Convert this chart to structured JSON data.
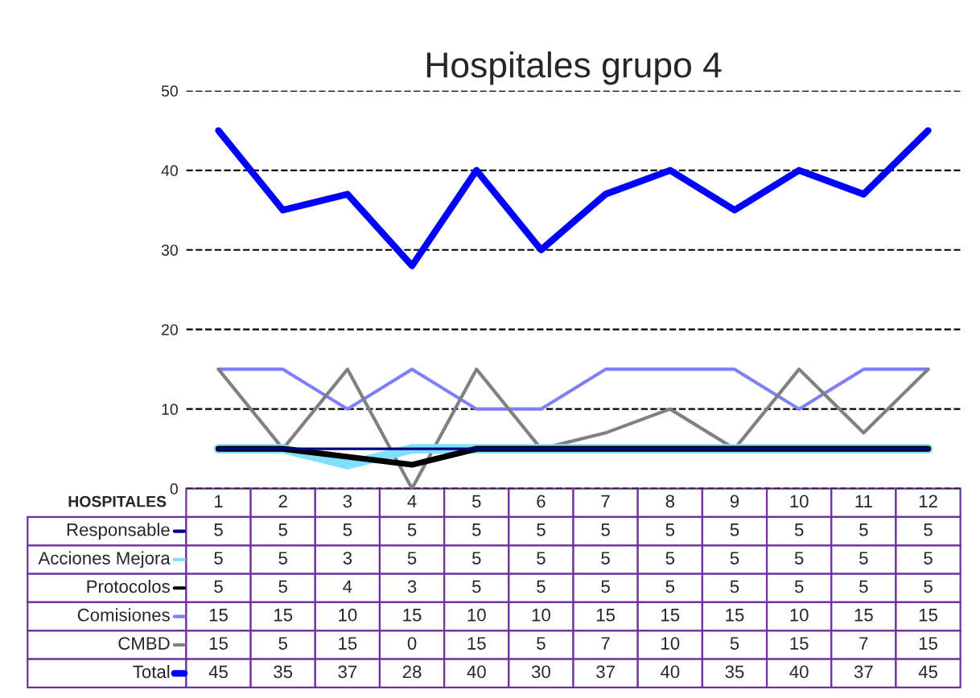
{
  "chart_data": {
    "type": "line",
    "title": "Hospitales grupo 4",
    "xlabel": "HOSPITALES",
    "categories": [
      "1",
      "2",
      "3",
      "4",
      "5",
      "6",
      "7",
      "8",
      "9",
      "10",
      "11",
      "12"
    ],
    "series": [
      {
        "name": "Responsable",
        "color": "#000080",
        "values": [
          5,
          5,
          5,
          5,
          5,
          5,
          5,
          5,
          5,
          5,
          5,
          5
        ]
      },
      {
        "name": "Acciones Mejora",
        "color": "#80e0ff",
        "values": [
          5,
          5,
          3,
          5,
          5,
          5,
          5,
          5,
          5,
          5,
          5,
          5
        ]
      },
      {
        "name": "Protocolos",
        "color": "#000000",
        "values": [
          5,
          5,
          4,
          3,
          5,
          5,
          5,
          5,
          5,
          5,
          5,
          5
        ]
      },
      {
        "name": "Comisiones",
        "color": "#8080ff",
        "values": [
          15,
          15,
          10,
          15,
          10,
          10,
          15,
          15,
          15,
          10,
          15,
          15
        ]
      },
      {
        "name": "CMBD",
        "color": "#808080",
        "values": [
          15,
          5,
          15,
          0,
          15,
          5,
          7,
          10,
          5,
          15,
          7,
          15
        ]
      },
      {
        "name": "Total",
        "color": "#0000ff",
        "values": [
          45,
          35,
          37,
          28,
          40,
          30,
          37,
          40,
          35,
          40,
          37,
          45
        ]
      }
    ],
    "ylim": [
      0,
      50
    ],
    "yticks": [
      0,
      10,
      20,
      30,
      40,
      50
    ],
    "grid": "y",
    "legend": "bottom left",
    "data_labels": true,
    "marker": "none",
    "line_style": "solid"
  }
}
